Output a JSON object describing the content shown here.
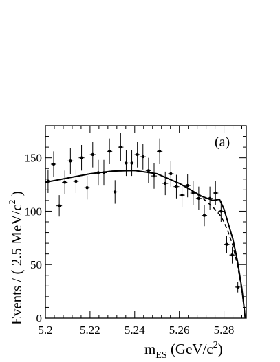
{
  "chart_data": {
    "type": "scatter",
    "panel_label": "(a)",
    "xlabel": {
      "main": "m",
      "sub": "ES",
      "unit_pre": " (GeV/c",
      "unit_sup": "2",
      "unit_post": ")"
    },
    "ylabel": {
      "pre": "Events / ( 2.5 MeV/c",
      "sup": "2",
      "post": " )"
    },
    "xlim": [
      5.2,
      5.29
    ],
    "ylim": [
      0,
      180
    ],
    "x_tick_labels": [
      "5.2",
      "5.22",
      "5.24",
      "5.26",
      "5.28"
    ],
    "y_tick_labels": [
      "0",
      "50",
      "100",
      "150"
    ],
    "series": [
      {
        "kind": "points_with_errors",
        "points": [
          {
            "x": 5.2012,
            "y": 128,
            "err": 11
          },
          {
            "x": 5.2037,
            "y": 144,
            "err": 12
          },
          {
            "x": 5.2062,
            "y": 105,
            "err": 10
          },
          {
            "x": 5.2087,
            "y": 127,
            "err": 11
          },
          {
            "x": 5.2112,
            "y": 147,
            "err": 12
          },
          {
            "x": 5.2137,
            "y": 128,
            "err": 11
          },
          {
            "x": 5.2162,
            "y": 150,
            "err": 12
          },
          {
            "x": 5.2187,
            "y": 122,
            "err": 11
          },
          {
            "x": 5.2212,
            "y": 153,
            "err": 12
          },
          {
            "x": 5.2237,
            "y": 136,
            "err": 12
          },
          {
            "x": 5.2262,
            "y": 136,
            "err": 12
          },
          {
            "x": 5.2287,
            "y": 156,
            "err": 12
          },
          {
            "x": 5.2312,
            "y": 118,
            "err": 11
          },
          {
            "x": 5.2337,
            "y": 160,
            "err": 13
          },
          {
            "x": 5.2362,
            "y": 145,
            "err": 12
          },
          {
            "x": 5.2387,
            "y": 145,
            "err": 12
          },
          {
            "x": 5.2412,
            "y": 153,
            "err": 12
          },
          {
            "x": 5.2437,
            "y": 151,
            "err": 12
          },
          {
            "x": 5.2462,
            "y": 138,
            "err": 12
          },
          {
            "x": 5.2487,
            "y": 133,
            "err": 12
          },
          {
            "x": 5.2512,
            "y": 156,
            "err": 12
          },
          {
            "x": 5.2537,
            "y": 126,
            "err": 11
          },
          {
            "x": 5.2562,
            "y": 135,
            "err": 12
          },
          {
            "x": 5.2587,
            "y": 123,
            "err": 11
          },
          {
            "x": 5.2612,
            "y": 115,
            "err": 11
          },
          {
            "x": 5.2637,
            "y": 124,
            "err": 11
          },
          {
            "x": 5.2662,
            "y": 117,
            "err": 11
          },
          {
            "x": 5.2687,
            "y": 112,
            "err": 11
          },
          {
            "x": 5.2712,
            "y": 96,
            "err": 10
          },
          {
            "x": 5.2737,
            "y": 112,
            "err": 11
          },
          {
            "x": 5.2762,
            "y": 117,
            "err": 11
          },
          {
            "x": 5.2787,
            "y": 100,
            "err": 10
          },
          {
            "x": 5.2812,
            "y": 69,
            "err": 8
          },
          {
            "x": 5.2837,
            "y": 59,
            "err": 8
          },
          {
            "x": 5.2862,
            "y": 29,
            "err": 5
          }
        ]
      },
      {
        "kind": "line_solid",
        "x": [
          5.2,
          5.21,
          5.22,
          5.23,
          5.24,
          5.25,
          5.26,
          5.265,
          5.27,
          5.275,
          5.278,
          5.28,
          5.282,
          5.284,
          5.286,
          5.288,
          5.289,
          5.2895
        ],
        "y": [
          127,
          131,
          135,
          137.5,
          138,
          135,
          126,
          120,
          114,
          110,
          111,
          102,
          88,
          74,
          54,
          28,
          10,
          0
        ]
      },
      {
        "kind": "line_dashed",
        "x": [
          5.2,
          5.21,
          5.22,
          5.23,
          5.24,
          5.25,
          5.26,
          5.265,
          5.27,
          5.275,
          5.278,
          5.28,
          5.282,
          5.284,
          5.286,
          5.288,
          5.289,
          5.2895
        ],
        "y": [
          127,
          131,
          135,
          137.5,
          138,
          135,
          126,
          120,
          113,
          104,
          97,
          90,
          80,
          68,
          50,
          27,
          10,
          0
        ]
      }
    ]
  }
}
